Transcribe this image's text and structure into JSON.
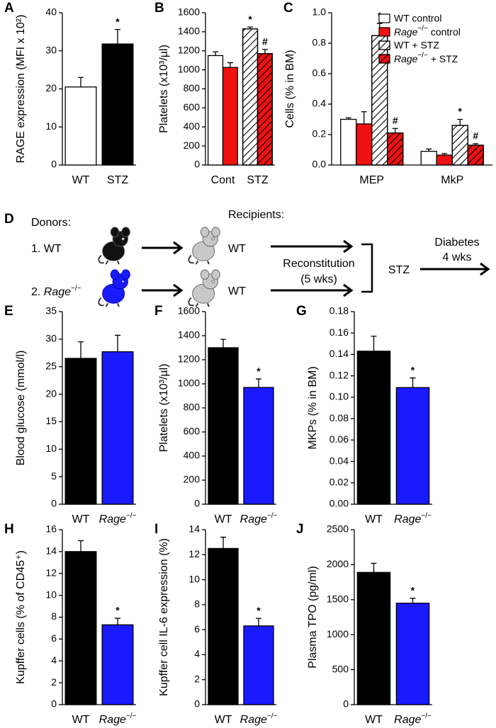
{
  "chart_data": [
    {
      "type": "bar",
      "label": "A",
      "ylabel": "RAGE expression (MFI x 10²)",
      "categories": [
        "WT",
        "STZ"
      ],
      "values": [
        20.5,
        31.8
      ],
      "errors": [
        2.5,
        3.8
      ],
      "colors": [
        "#ffffff",
        "#000000"
      ],
      "markers": [
        null,
        "*"
      ],
      "ylim": [
        0,
        40
      ],
      "yticks": [
        0,
        10,
        20,
        30,
        40
      ]
    },
    {
      "type": "bar",
      "label": "B",
      "ylabel": "Platelets (x10³/µl)",
      "categories": [
        "Cont",
        "STZ"
      ],
      "series": [
        {
          "color": "#ffffff",
          "hatch": false,
          "values": [
            1150,
            null
          ],
          "errors": [
            40,
            null
          ],
          "markers": [
            null,
            null
          ]
        },
        {
          "color": "#ee1111",
          "hatch": false,
          "values": [
            1025,
            null
          ],
          "errors": [
            50,
            null
          ],
          "markers": [
            null,
            null
          ]
        },
        {
          "color": "#ffffff",
          "hatch": true,
          "values": [
            null,
            1430
          ],
          "errors": [
            null,
            20
          ],
          "markers": [
            null,
            "*"
          ]
        },
        {
          "color": "#ee1111",
          "hatch": true,
          "values": [
            null,
            1170
          ],
          "errors": [
            null,
            45
          ],
          "markers": [
            null,
            "#"
          ]
        }
      ],
      "ylim": [
        0,
        1600
      ],
      "yticks": [
        0,
        200,
        400,
        600,
        800,
        1000,
        1200,
        1400,
        1600
      ]
    },
    {
      "type": "bar",
      "label": "C",
      "ylabel": "Cells (% in BM)",
      "categories": [
        "MEP",
        "MkP"
      ],
      "legend": "upper right",
      "series": [
        {
          "name": "WT control",
          "color": "#ffffff",
          "hatch": false,
          "values": [
            0.3,
            0.09
          ],
          "errors": [
            0.01,
            0.015
          ],
          "markers": [
            null,
            null
          ]
        },
        {
          "name": "Rage−/− control",
          "color": "#ee1111",
          "hatch": false,
          "values": [
            0.27,
            0.065
          ],
          "errors": [
            0.08,
            0.01
          ],
          "markers": [
            null,
            null
          ]
        },
        {
          "name": "WT + STZ",
          "color": "#ffffff",
          "hatch": true,
          "values": [
            0.85,
            0.26
          ],
          "errors": [
            0.08,
            0.04
          ],
          "markers": [
            "*",
            "*"
          ]
        },
        {
          "name": "Rage−/− + STZ",
          "color": "#ee1111",
          "hatch": true,
          "values": [
            0.21,
            0.13
          ],
          "errors": [
            0.03,
            0.01
          ],
          "markers": [
            "#",
            "#"
          ]
        }
      ],
      "ylim": [
        0,
        1.0
      ],
      "yticks": [
        {
          "value": 0,
          "label": "0.0"
        },
        0.2,
        0.4,
        0.6,
        0.8,
        {
          "value": 1,
          "label": "1.0"
        }
      ]
    },
    {
      "type": "bar",
      "label": "E",
      "ylabel": "Blood glucose (mmol/l)",
      "categories": [
        "WT",
        "Rage−/−"
      ],
      "values": [
        26.5,
        27.7
      ],
      "errors": [
        3.0,
        3.0
      ],
      "colors": [
        "#000000",
        "#1a1aff"
      ],
      "markers": [
        null,
        null
      ],
      "ylim": [
        0,
        35
      ],
      "yticks": [
        0,
        5,
        10,
        15,
        20,
        25,
        30,
        35
      ]
    },
    {
      "type": "bar",
      "label": "F",
      "ylabel": "Platelets (x10³/µl)",
      "categories": [
        "WT",
        "Rage−/−"
      ],
      "values": [
        1300,
        970
      ],
      "errors": [
        70,
        70
      ],
      "colors": [
        "#000000",
        "#1a1aff"
      ],
      "markers": [
        null,
        "*"
      ],
      "ylim": [
        0,
        1600
      ],
      "yticks": [
        0,
        200,
        400,
        600,
        800,
        1000,
        1200,
        1400,
        1600
      ]
    },
    {
      "type": "bar",
      "label": "G",
      "ylabel": "MKPs (% in BM)",
      "categories": [
        "WT",
        "Rage−/−"
      ],
      "values": [
        0.143,
        0.109
      ],
      "errors": [
        0.014,
        0.009
      ],
      "colors": [
        "#000000",
        "#1a1aff"
      ],
      "markers": [
        null,
        "*"
      ],
      "ylim": [
        0,
        0.18
      ],
      "yticks": [
        {
          "value": 0,
          "label": "0.00"
        },
        {
          "value": 0.02,
          "label": "0.02"
        },
        {
          "value": 0.04,
          "label": "0.04"
        },
        {
          "value": 0.06,
          "label": "0.06"
        },
        {
          "value": 0.08,
          "label": "0.08"
        },
        {
          "value": 0.1,
          "label": "0.10"
        },
        {
          "value": 0.12,
          "label": "0.12"
        },
        {
          "value": 0.14,
          "label": "0.14"
        },
        {
          "value": 0.16,
          "label": "0.16"
        },
        {
          "value": 0.18,
          "label": "0.18"
        }
      ]
    },
    {
      "type": "bar",
      "label": "H",
      "ylabel": "Kupffer cells (% of CD45⁺)",
      "categories": [
        "WT",
        "Rage−/−"
      ],
      "values": [
        14,
        7.3
      ],
      "errors": [
        1.0,
        0.6
      ],
      "colors": [
        "#000000",
        "#1a1aff"
      ],
      "markers": [
        null,
        "*"
      ],
      "ylim": [
        0,
        16
      ],
      "yticks": [
        0,
        2,
        4,
        6,
        8,
        10,
        12,
        14,
        16
      ]
    },
    {
      "type": "bar",
      "label": "I",
      "ylabel": "Kupffer cell IL-6 expression (%)",
      "categories": [
        "WT",
        "Rage−/−"
      ],
      "values": [
        12.5,
        6.3
      ],
      "errors": [
        0.9,
        0.6
      ],
      "colors": [
        "#000000",
        "#1a1aff"
      ],
      "markers": [
        null,
        "*"
      ],
      "ylim": [
        0,
        14
      ],
      "yticks": [
        0,
        2,
        4,
        6,
        8,
        10,
        12,
        14
      ]
    },
    {
      "type": "bar",
      "label": "J",
      "ylabel": "Plasma TPO (pg/ml)",
      "categories": [
        "WT",
        "Rage−/−"
      ],
      "values": [
        1890,
        1450
      ],
      "errors": [
        130,
        70
      ],
      "colors": [
        "#000000",
        "#1a1aff"
      ],
      "markers": [
        null,
        "*"
      ],
      "ylim": [
        0,
        2500
      ],
      "yticks": [
        0,
        500,
        1000,
        1500,
        2000,
        2500
      ]
    }
  ],
  "diagram": {
    "label": "D",
    "donors": "Donors:",
    "donor1": "1. WT",
    "donor2": "2. Rage−/−",
    "recipients": "Recipients:",
    "recipient1": "WT",
    "recipient2": "WT",
    "step1": "Reconstitution",
    "step1_time": "(5 wks)",
    "treatment": "STZ",
    "step2": "Diabetes",
    "step2_time": "4 wks"
  }
}
